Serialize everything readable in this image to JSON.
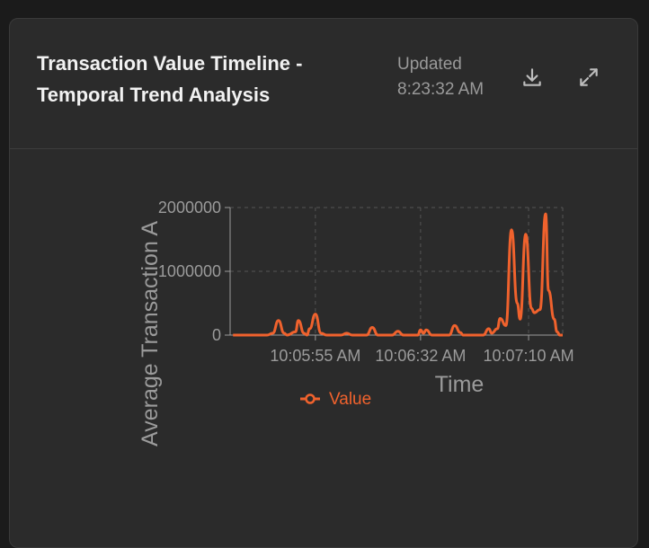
{
  "card": {
    "title": "Transaction Value Timeline - Temporal Trend Analysis",
    "updated_label": "Updated",
    "updated_time": "8:23:32 AM",
    "download_icon": "download-icon",
    "expand_icon": "expand-icon"
  },
  "colors": {
    "series": "#f0622d",
    "background": "#2b2b2b",
    "axis": "#9b9b9b",
    "grid": "#555555"
  },
  "chart_data": {
    "type": "line",
    "title": "",
    "xlabel": "Time",
    "ylabel": "Average Transaction A",
    "x_tick_labels": [
      "10:05:55 AM",
      "10:06:32 AM",
      "10:07:10 AM"
    ],
    "y_ticks": [
      0,
      1000000,
      2000000
    ],
    "y_tick_labels": [
      "0",
      "1000000",
      "2000000"
    ],
    "ylim": [
      0,
      2000000
    ],
    "grid": true,
    "legend": "bottom",
    "series": [
      {
        "name": "Value",
        "points": [
          [
            "10:05:26",
            0
          ],
          [
            "10:05:38",
            0
          ],
          [
            "10:05:40",
            30000
          ],
          [
            "10:05:42",
            230000
          ],
          [
            "10:05:44",
            30000
          ],
          [
            "10:05:45",
            0
          ],
          [
            "10:05:48",
            50000
          ],
          [
            "10:05:49",
            230000
          ],
          [
            "10:05:51",
            30000
          ],
          [
            "10:05:52",
            0
          ],
          [
            "10:05:53",
            100000
          ],
          [
            "10:05:55",
            330000
          ],
          [
            "10:05:57",
            30000
          ],
          [
            "10:05:59",
            0
          ],
          [
            "10:06:04",
            0
          ],
          [
            "10:06:06",
            30000
          ],
          [
            "10:06:08",
            0
          ],
          [
            "10:06:13",
            0
          ],
          [
            "10:06:15",
            120000
          ],
          [
            "10:06:17",
            0
          ],
          [
            "10:06:22",
            0
          ],
          [
            "10:06:24",
            60000
          ],
          [
            "10:06:26",
            0
          ],
          [
            "10:06:31",
            0
          ],
          [
            "10:06:32",
            80000
          ],
          [
            "10:06:33",
            30000
          ],
          [
            "10:06:34",
            80000
          ],
          [
            "10:06:36",
            0
          ],
          [
            "10:06:42",
            0
          ],
          [
            "10:06:44",
            150000
          ],
          [
            "10:06:46",
            40000
          ],
          [
            "10:06:47",
            0
          ],
          [
            "10:06:54",
            0
          ],
          [
            "10:06:56",
            100000
          ],
          [
            "10:06:57",
            30000
          ],
          [
            "10:06:59",
            100000
          ],
          [
            "10:07:00",
            260000
          ],
          [
            "10:07:02",
            150000
          ],
          [
            "10:07:04",
            1650000
          ],
          [
            "10:07:06",
            500000
          ],
          [
            "10:07:07",
            250000
          ],
          [
            "10:07:09",
            1580000
          ],
          [
            "10:07:11",
            420000
          ],
          [
            "10:07:12",
            350000
          ],
          [
            "10:07:14",
            400000
          ],
          [
            "10:07:16",
            1900000
          ],
          [
            "10:07:17",
            700000
          ],
          [
            "10:07:19",
            250000
          ],
          [
            "10:07:20",
            50000
          ],
          [
            "10:07:21",
            0
          ],
          [
            "10:07:22",
            0
          ]
        ]
      }
    ]
  }
}
